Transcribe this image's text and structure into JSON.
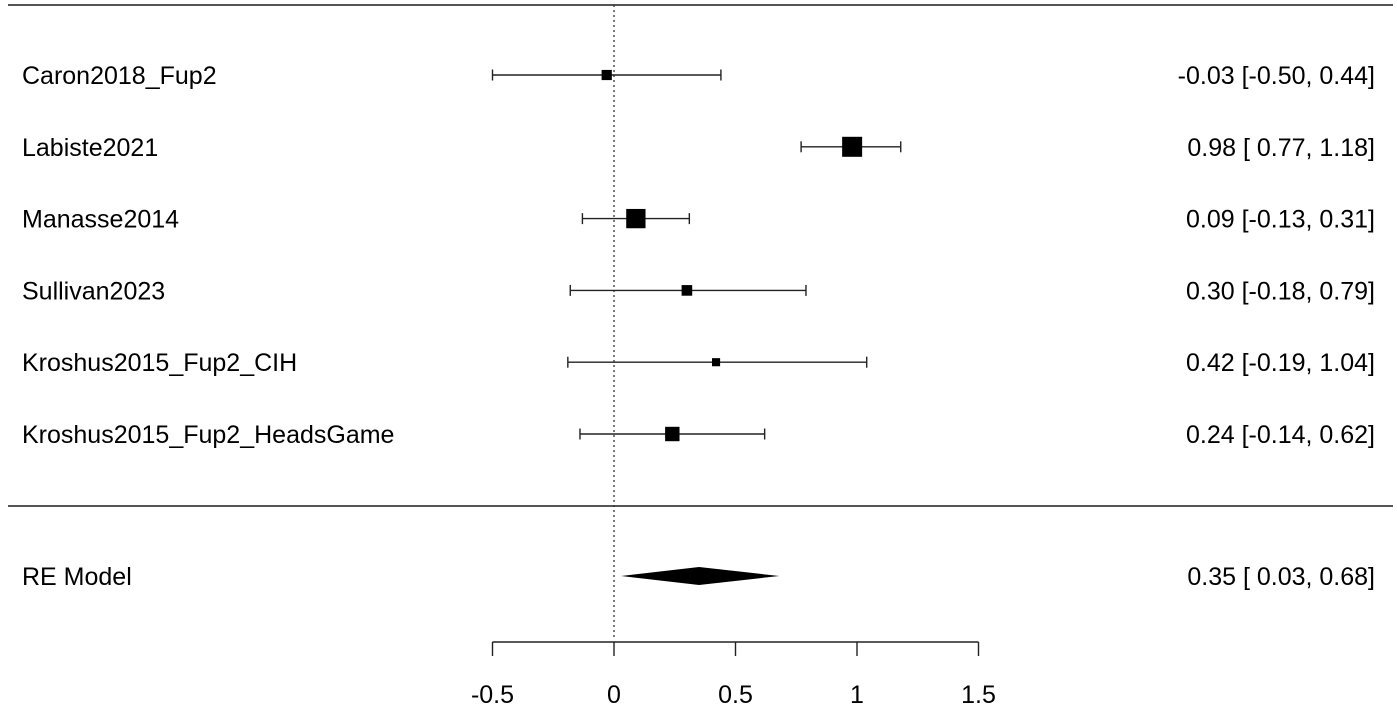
{
  "chart_data": {
    "type": "forest",
    "title": "",
    "xlabel": "",
    "xlim": [
      -0.5,
      1.5
    ],
    "x_ticks": [
      -0.5,
      0,
      0.5,
      1,
      1.5
    ],
    "x_tick_labels": [
      "-0.5",
      "0",
      "0.5",
      "1",
      "1.5"
    ],
    "reference_line": 0,
    "studies": [
      {
        "name": "Caron2018_Fup2",
        "estimate": -0.03,
        "ci_lower": -0.5,
        "ci_upper": 0.44,
        "weight": 0.3,
        "annotation": "-0.03 [-0.50, 0.44]"
      },
      {
        "name": "Labiste2021",
        "estimate": 0.98,
        "ci_lower": 0.77,
        "ci_upper": 1.18,
        "weight": 1.0,
        "annotation": "0.98 [ 0.77, 1.18]"
      },
      {
        "name": "Manasse2014",
        "estimate": 0.09,
        "ci_lower": -0.13,
        "ci_upper": 0.31,
        "weight": 0.95,
        "annotation": "0.09 [-0.13, 0.31]"
      },
      {
        "name": "Sullivan2023",
        "estimate": 0.3,
        "ci_lower": -0.18,
        "ci_upper": 0.79,
        "weight": 0.33,
        "annotation": "0.30 [-0.18, 0.79]"
      },
      {
        "name": "Kroshus2015_Fup2_CIH",
        "estimate": 0.42,
        "ci_lower": -0.19,
        "ci_upper": 1.04,
        "weight": 0.15,
        "annotation": "0.42 [-0.19, 1.04]"
      },
      {
        "name": "Kroshus2015_Fup2_HeadsGame",
        "estimate": 0.24,
        "ci_lower": -0.14,
        "ci_upper": 0.62,
        "weight": 0.6,
        "annotation": "0.24 [-0.14, 0.62]"
      }
    ],
    "summary": {
      "name": "RE Model",
      "estimate": 0.35,
      "ci_lower": 0.03,
      "ci_upper": 0.68,
      "annotation": "0.35 [ 0.03, 0.68]"
    }
  }
}
